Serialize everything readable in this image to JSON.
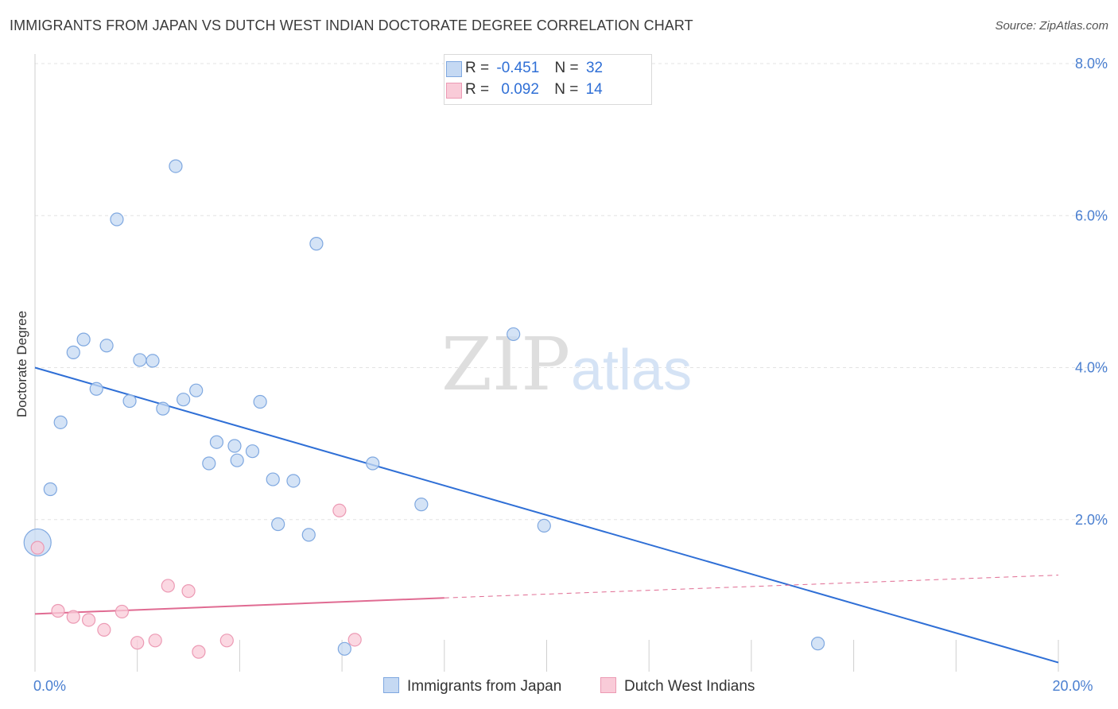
{
  "title": "IMMIGRANTS FROM JAPAN VS DUTCH WEST INDIAN DOCTORATE DEGREE CORRELATION CHART",
  "source": "Source: ZipAtlas.com",
  "watermark": {
    "zip": "ZIP",
    "atlas": "atlas"
  },
  "legend": {
    "row1": {
      "r_label": "R =",
      "r_value": "-0.451",
      "n_label": "N =",
      "n_value": "32"
    },
    "row2": {
      "r_label": "R =",
      "r_value": "0.092",
      "n_label": "N =",
      "n_value": "14"
    }
  },
  "colors": {
    "japan_fill": "#c5d9f3",
    "japan_stroke": "#7fa8e0",
    "japan_line": "#2f6fd6",
    "dwi_fill": "#f9cbd8",
    "dwi_stroke": "#ec9ab4",
    "dwi_line": "#e06b92",
    "tick_text": "#4a7fd0"
  },
  "chart_data": {
    "type": "scatter",
    "title": "IMMIGRANTS FROM JAPAN VS DUTCH WEST INDIAN DOCTORATE DEGREE CORRELATION CHART",
    "xlabel": "",
    "ylabel": "Doctorate Degree",
    "xlim": [
      0,
      20
    ],
    "ylim": [
      0,
      8.2
    ],
    "y_ticks": [
      {
        "value": 2,
        "label": "2.0%"
      },
      {
        "value": 4,
        "label": "4.0%"
      },
      {
        "value": 6,
        "label": "6.0%"
      },
      {
        "value": 8,
        "label": "8.0%"
      }
    ],
    "x_ticks": [
      {
        "value": 0,
        "label": "0.0%"
      },
      {
        "value": 20,
        "label": "20.0%"
      }
    ],
    "series": [
      {
        "name": "Immigrants from Japan",
        "color": "#7fa8e0",
        "points": [
          {
            "x": 0.05,
            "y": 1.7,
            "big": true
          },
          {
            "x": 0.3,
            "y": 2.4
          },
          {
            "x": 0.5,
            "y": 3.28
          },
          {
            "x": 0.75,
            "y": 4.2
          },
          {
            "x": 0.95,
            "y": 4.37
          },
          {
            "x": 1.2,
            "y": 3.72
          },
          {
            "x": 1.4,
            "y": 4.29
          },
          {
            "x": 1.6,
            "y": 5.95
          },
          {
            "x": 1.85,
            "y": 3.56
          },
          {
            "x": 2.05,
            "y": 4.1
          },
          {
            "x": 2.3,
            "y": 4.09
          },
          {
            "x": 2.5,
            "y": 3.46
          },
          {
            "x": 2.75,
            "y": 6.65
          },
          {
            "x": 2.9,
            "y": 3.58
          },
          {
            "x": 3.15,
            "y": 3.7
          },
          {
            "x": 3.4,
            "y": 2.74
          },
          {
            "x": 3.55,
            "y": 3.02
          },
          {
            "x": 3.9,
            "y": 2.97
          },
          {
            "x": 3.95,
            "y": 2.78
          },
          {
            "x": 4.25,
            "y": 2.9
          },
          {
            "x": 4.4,
            "y": 3.55
          },
          {
            "x": 4.65,
            "y": 2.53
          },
          {
            "x": 4.75,
            "y": 1.94
          },
          {
            "x": 5.05,
            "y": 2.51
          },
          {
            "x": 5.35,
            "y": 1.8
          },
          {
            "x": 5.5,
            "y": 5.63
          },
          {
            "x": 6.05,
            "y": 0.3
          },
          {
            "x": 6.6,
            "y": 2.74
          },
          {
            "x": 7.55,
            "y": 2.2
          },
          {
            "x": 9.35,
            "y": 4.44
          },
          {
            "x": 9.95,
            "y": 1.92
          },
          {
            "x": 15.3,
            "y": 0.37
          }
        ],
        "trend": {
          "x0": 0,
          "y0": 4.0,
          "x1": 20,
          "y1": 0.12
        }
      },
      {
        "name": "Dutch West Indians",
        "color": "#ec9ab4",
        "points": [
          {
            "x": 0.05,
            "y": 1.63
          },
          {
            "x": 0.45,
            "y": 0.8
          },
          {
            "x": 0.75,
            "y": 0.72
          },
          {
            "x": 1.05,
            "y": 0.68
          },
          {
            "x": 1.35,
            "y": 0.55
          },
          {
            "x": 1.7,
            "y": 0.79
          },
          {
            "x": 2.0,
            "y": 0.38
          },
          {
            "x": 2.35,
            "y": 0.41
          },
          {
            "x": 2.6,
            "y": 1.13
          },
          {
            "x": 3.0,
            "y": 1.06
          },
          {
            "x": 3.2,
            "y": 0.26
          },
          {
            "x": 3.75,
            "y": 0.41
          },
          {
            "x": 5.95,
            "y": 2.12
          },
          {
            "x": 6.25,
            "y": 0.42
          }
        ],
        "trend": {
          "x0": 0,
          "y0": 0.76,
          "x1": 8,
          "y1": 0.97,
          "dash_to_x": 20,
          "dash_to_y": 1.27
        }
      }
    ]
  },
  "bottom_legend": {
    "japan_label": "Immigrants from Japan",
    "dwi_label": "Dutch West Indians"
  }
}
